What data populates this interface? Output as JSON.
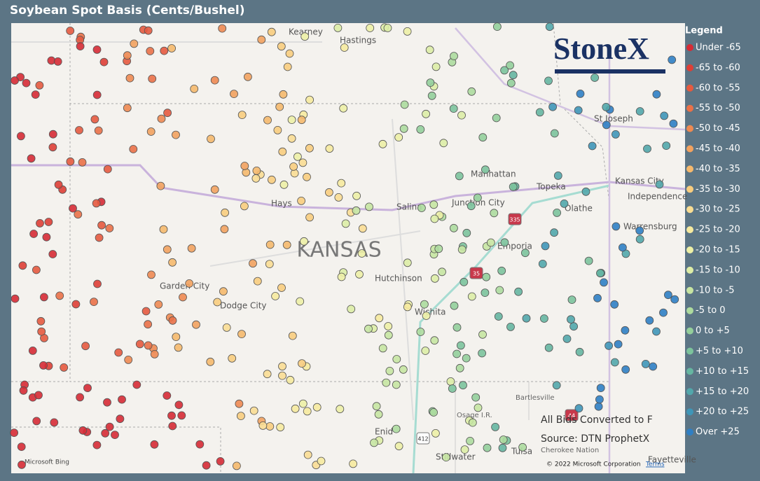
{
  "title": "Soybean Spot Basis (Cents/Bushel)",
  "legend": {
    "title": "Legend",
    "items": [
      {
        "label": "Under -65",
        "color": "#d62b35"
      },
      {
        "label": "-65 to -60",
        "color": "#de3f36"
      },
      {
        "label": "-60 to -55",
        "color": "#e55a3f"
      },
      {
        "label": "-55 to -50",
        "color": "#ea7148"
      },
      {
        "label": "-50 to -45",
        "color": "#ee8a52"
      },
      {
        "label": "-45 to -40",
        "color": "#f2a25f"
      },
      {
        "label": "-40 to -35",
        "color": "#f5b96d"
      },
      {
        "label": "-35 to -30",
        "color": "#f8cd7e"
      },
      {
        "label": "-30 to -25",
        "color": "#f9dd93"
      },
      {
        "label": "-25 to -20",
        "color": "#f6ea9f"
      },
      {
        "label": "-20 to -15",
        "color": "#edf0a6"
      },
      {
        "label": "-15 to -10",
        "color": "#ddeda6"
      },
      {
        "label": "-10 to -5",
        "color": "#c7e5a2"
      },
      {
        "label": "-5 to 0",
        "color": "#addb9e"
      },
      {
        "label": "0 to +5",
        "color": "#94cf9b"
      },
      {
        "label": "+5 to +10",
        "color": "#7cc39c"
      },
      {
        "label": "+10 to +15",
        "color": "#66b6a1"
      },
      {
        "label": "+15 to +20",
        "color": "#52a7ab"
      },
      {
        "label": "+20 to +25",
        "color": "#3f96b8"
      },
      {
        "label": "Over +25",
        "color": "#2f7fc4"
      }
    ]
  },
  "logo": "StoneX",
  "places": [
    "Kearney",
    "Hastings",
    "St Joseph",
    "Manhattan",
    "Kansas City",
    "Independence",
    "Topeka",
    "Olathe",
    "Hays",
    "Salina",
    "Junction City",
    "Warrensburg",
    "KANSAS",
    "Emporia",
    "Hutchinson",
    "Garden City",
    "Dodge City",
    "Wichita",
    "Bartlesville",
    "Osage I.R.",
    "Enid",
    "Tulsa",
    "Cherokee Nation",
    "Stillwater",
    "Fayetteville"
  ],
  "shields": [
    "335",
    "35",
    "412",
    "44"
  ],
  "notes": [
    "All Bids Converted to F",
    "Source: DTN ProphetX"
  ],
  "attribution": {
    "bing": "Microsoft Bing",
    "copyright": "© 2022 Microsoft Corporation",
    "terms": "Terms"
  }
}
